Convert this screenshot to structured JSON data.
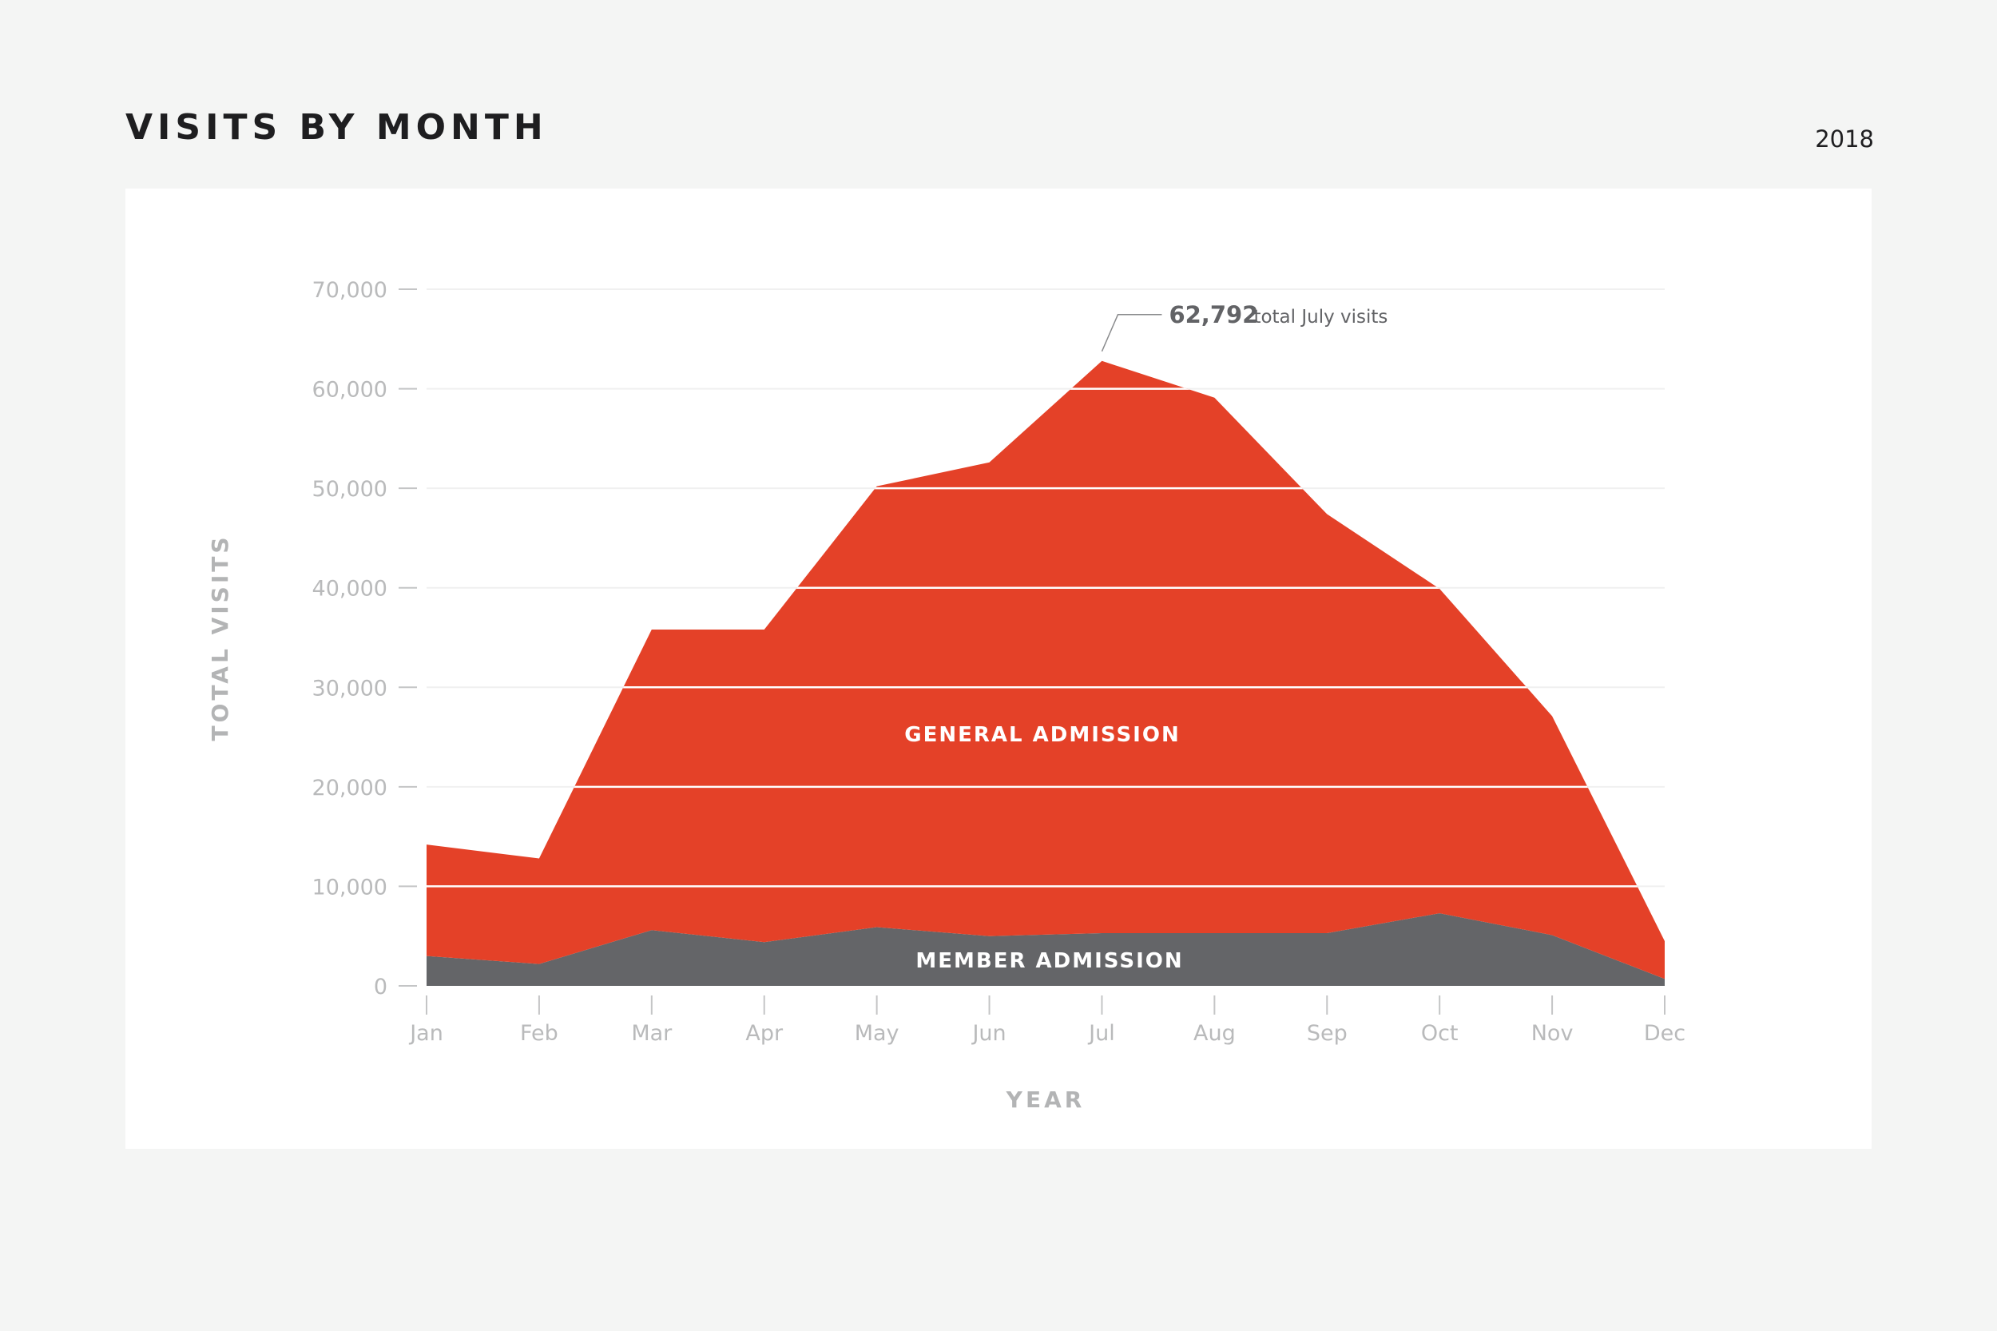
{
  "header": {
    "title": "VISITS BY MONTH",
    "year": "2018"
  },
  "chart_data": {
    "type": "area",
    "stacked": true,
    "categories": [
      "Jan",
      "Feb",
      "Mar",
      "Apr",
      "May",
      "Jun",
      "Jul",
      "Aug",
      "Sep",
      "Oct",
      "Nov",
      "Dec"
    ],
    "series": [
      {
        "name": "MEMBER ADMISSION",
        "color": "#646568",
        "values": [
          3000,
          2200,
          5600,
          4400,
          5900,
          5000,
          5300,
          5300,
          5300,
          7300,
          5100,
          700
        ]
      },
      {
        "name": "GENERAL ADMISSION",
        "color": "#e44128",
        "values": [
          11200,
          10600,
          30200,
          31400,
          44300,
          47600,
          57492,
          53800,
          42100,
          32600,
          22000,
          3800
        ]
      }
    ],
    "totals": [
      14200,
      12800,
      35800,
      35800,
      50200,
      52600,
      62792,
      59100,
      47400,
      39900,
      27100,
      4500
    ],
    "yticks": [
      0,
      10000,
      20000,
      30000,
      40000,
      50000,
      60000,
      70000
    ],
    "ytick_labels": [
      "0",
      "10,000",
      "20,000",
      "30,000",
      "40,000",
      "50,000",
      "60,000",
      "70,000"
    ],
    "ylim": [
      0,
      70000
    ],
    "xlabel": "YEAR",
    "ylabel": "TOTAL VISITS",
    "grid": true,
    "annotation": {
      "category": "Jul",
      "value_text": "62,792",
      "text": "total July visits"
    }
  }
}
